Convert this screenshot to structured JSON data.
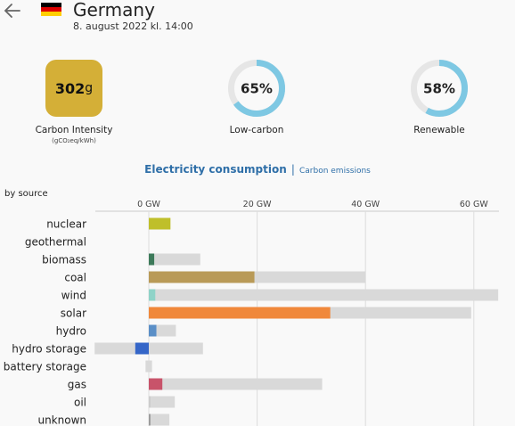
{
  "header": {
    "country": "Germany",
    "datetime": "8. august 2022 kl. 14:00",
    "flag_colors": [
      "#000000",
      "#dd0000",
      "#ffce00"
    ]
  },
  "kpis": {
    "carbon_intensity": {
      "value": "302",
      "unit": "g",
      "label": "Carbon Intensity",
      "sublabel": "(gCO₂eq/kWh)",
      "color": "#d4af37"
    },
    "low_carbon": {
      "value": "65%",
      "fraction": 0.65,
      "label": "Low-carbon"
    },
    "renewable": {
      "value": "58%",
      "fraction": 0.58,
      "label": "Renewable"
    },
    "ring_color": "#7ec8e3",
    "ring_track_color": "#e6e6e6"
  },
  "tabs": {
    "consumption": "Electricity consumption",
    "separator": "|",
    "emissions": "Carbon emissions"
  },
  "by_source_label": "by source",
  "chart_data": {
    "type": "bar",
    "unit": "GW",
    "ticks": [
      {
        "value": 0,
        "label": "0 GW"
      },
      {
        "value": 20,
        "label": "20 GW"
      },
      {
        "value": 40,
        "label": "40 GW"
      },
      {
        "value": 60,
        "label": "60 GW"
      }
    ],
    "xlim": [
      -10,
      65
    ],
    "categories": [
      "nuclear",
      "geothermal",
      "biomass",
      "coal",
      "wind",
      "solar",
      "hydro",
      "hydro storage",
      "battery storage",
      "gas",
      "oil",
      "unknown"
    ],
    "production": [
      4,
      0,
      1,
      19.5,
      1.2,
      33.5,
      1.4,
      -2.5,
      0,
      2.5,
      0.3,
      0.3
    ],
    "capacity_min": [
      0,
      0,
      0,
      0,
      0,
      0,
      0,
      -10,
      -0.6,
      0,
      0,
      0
    ],
    "capacity_max": [
      0,
      0,
      9.5,
      40,
      64.5,
      59.5,
      5,
      10,
      0.6,
      32,
      4.8,
      3.8
    ],
    "colors": [
      "#bfbf2a",
      "#cccccc",
      "#3d7a5a",
      "#b99a57",
      "#8fd3c8",
      "#f0883b",
      "#5b8fc7",
      "#3566c8",
      "#cccccc",
      "#c8536a",
      "#cccccc",
      "#999999"
    ]
  }
}
